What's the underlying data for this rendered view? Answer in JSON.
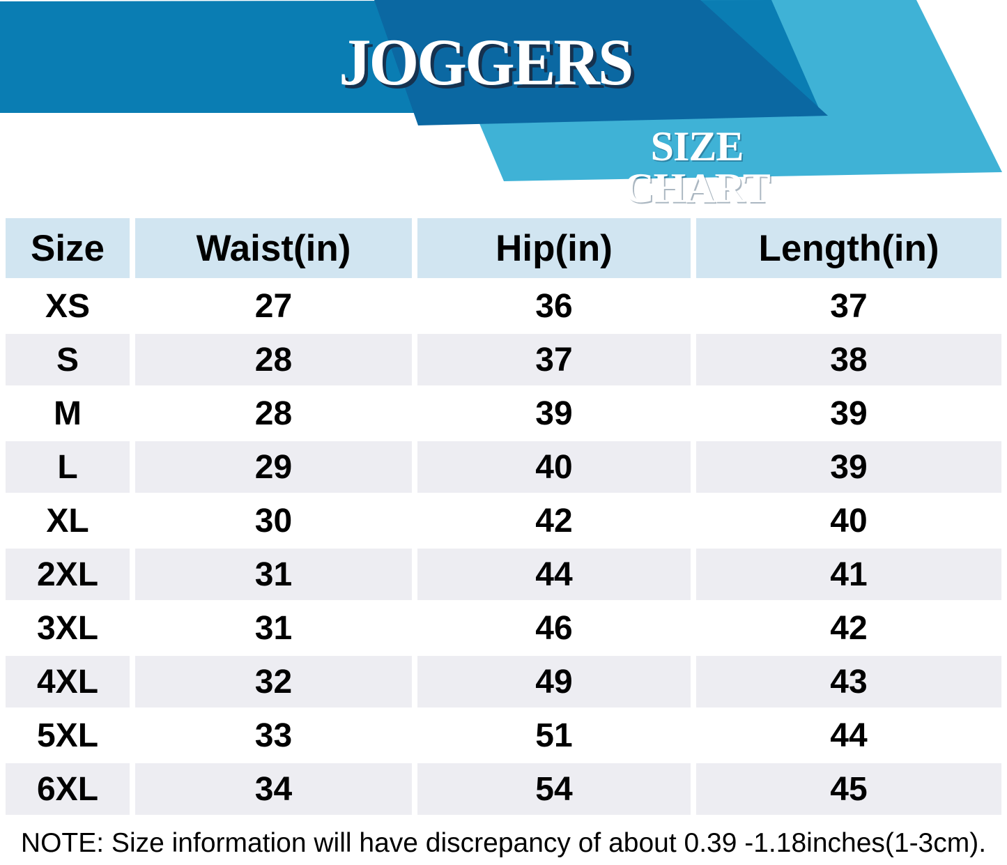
{
  "header": {
    "title": "JOGGERS",
    "subtitle": "SIZE CHART"
  },
  "note": "NOTE: Size information will have discrepancy of about 0.39 -1.18inches(1-3cm).",
  "colors": {
    "band_blue": "#0a7db3",
    "dark_blue": "#0b68a2",
    "light_blue": "#3fb2d6",
    "header_cell_blue": "#d1e5f1",
    "stripe_row_gray": "#ededf2",
    "title_shadow_navy": "#16324f",
    "text_black": "#000000"
  },
  "chart_data": {
    "type": "table",
    "title": "JOGGERS",
    "subtitle": "SIZE CHART",
    "columns": [
      "Size",
      "Waist(in)",
      "Hip(in)",
      "Length(in)"
    ],
    "rows": [
      [
        "XS",
        "27",
        "36",
        "37"
      ],
      [
        "S",
        "28",
        "37",
        "38"
      ],
      [
        "M",
        "28",
        "39",
        "39"
      ],
      [
        "L",
        "29",
        "40",
        "39"
      ],
      [
        "XL",
        "30",
        "42",
        "40"
      ],
      [
        "2XL",
        "31",
        "44",
        "41"
      ],
      [
        "3XL",
        "31",
        "46",
        "42"
      ],
      [
        "4XL",
        "32",
        "49",
        "43"
      ],
      [
        "5XL",
        "33",
        "51",
        "44"
      ],
      [
        "6XL",
        "34",
        "54",
        "45"
      ]
    ],
    "layout": {
      "units": "inches",
      "stripe": "alternating-rows",
      "legend": "none"
    }
  }
}
